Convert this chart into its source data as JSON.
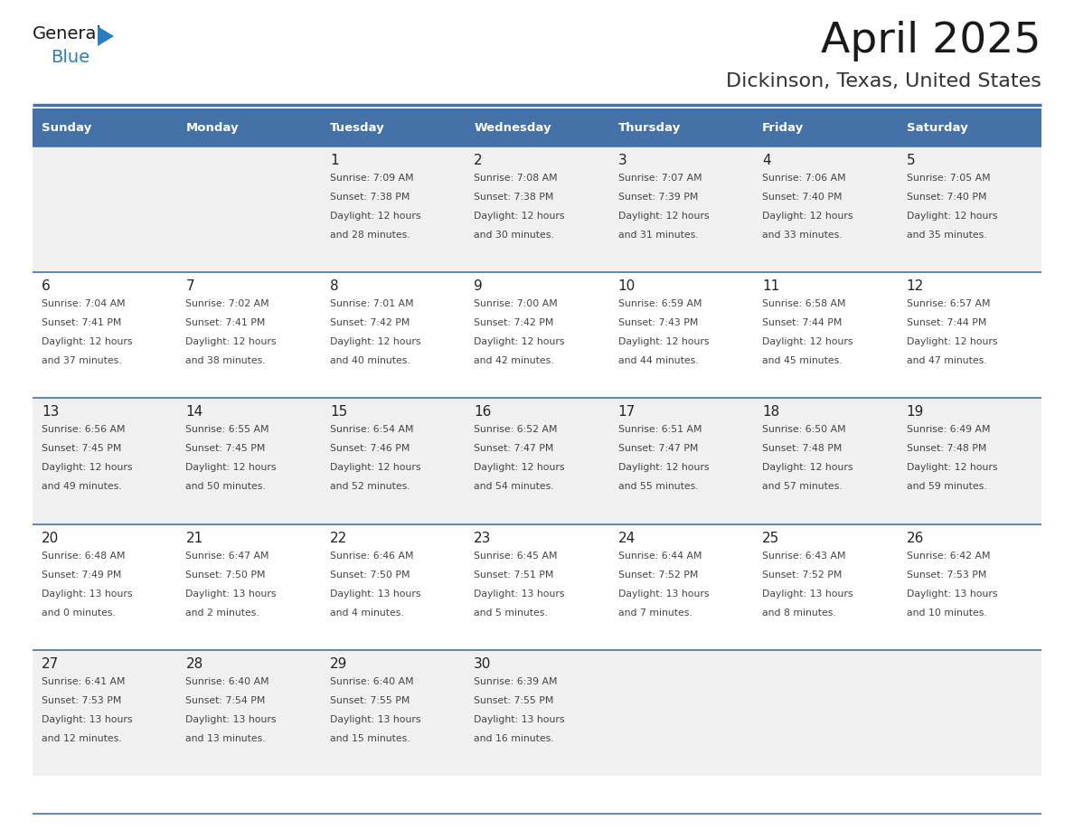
{
  "title": "April 2025",
  "subtitle": "Dickinson, Texas, United States",
  "header_bg": "#4472a8",
  "header_text_color": "#ffffff",
  "cell_bg_odd": "#f0f0f0",
  "cell_bg_even": "#ffffff",
  "day_names": [
    "Sunday",
    "Monday",
    "Tuesday",
    "Wednesday",
    "Thursday",
    "Friday",
    "Saturday"
  ],
  "grid_line_color": "#4472a8",
  "weeks": [
    [
      {
        "date": "",
        "sunrise": "",
        "sunset": "",
        "daylight": ""
      },
      {
        "date": "",
        "sunrise": "",
        "sunset": "",
        "daylight": ""
      },
      {
        "date": "1",
        "sunrise": "Sunrise: 7:09 AM",
        "sunset": "Sunset: 7:38 PM",
        "daylight": "Daylight: 12 hours\nand 28 minutes."
      },
      {
        "date": "2",
        "sunrise": "Sunrise: 7:08 AM",
        "sunset": "Sunset: 7:38 PM",
        "daylight": "Daylight: 12 hours\nand 30 minutes."
      },
      {
        "date": "3",
        "sunrise": "Sunrise: 7:07 AM",
        "sunset": "Sunset: 7:39 PM",
        "daylight": "Daylight: 12 hours\nand 31 minutes."
      },
      {
        "date": "4",
        "sunrise": "Sunrise: 7:06 AM",
        "sunset": "Sunset: 7:40 PM",
        "daylight": "Daylight: 12 hours\nand 33 minutes."
      },
      {
        "date": "5",
        "sunrise": "Sunrise: 7:05 AM",
        "sunset": "Sunset: 7:40 PM",
        "daylight": "Daylight: 12 hours\nand 35 minutes."
      }
    ],
    [
      {
        "date": "6",
        "sunrise": "Sunrise: 7:04 AM",
        "sunset": "Sunset: 7:41 PM",
        "daylight": "Daylight: 12 hours\nand 37 minutes."
      },
      {
        "date": "7",
        "sunrise": "Sunrise: 7:02 AM",
        "sunset": "Sunset: 7:41 PM",
        "daylight": "Daylight: 12 hours\nand 38 minutes."
      },
      {
        "date": "8",
        "sunrise": "Sunrise: 7:01 AM",
        "sunset": "Sunset: 7:42 PM",
        "daylight": "Daylight: 12 hours\nand 40 minutes."
      },
      {
        "date": "9",
        "sunrise": "Sunrise: 7:00 AM",
        "sunset": "Sunset: 7:42 PM",
        "daylight": "Daylight: 12 hours\nand 42 minutes."
      },
      {
        "date": "10",
        "sunrise": "Sunrise: 6:59 AM",
        "sunset": "Sunset: 7:43 PM",
        "daylight": "Daylight: 12 hours\nand 44 minutes."
      },
      {
        "date": "11",
        "sunrise": "Sunrise: 6:58 AM",
        "sunset": "Sunset: 7:44 PM",
        "daylight": "Daylight: 12 hours\nand 45 minutes."
      },
      {
        "date": "12",
        "sunrise": "Sunrise: 6:57 AM",
        "sunset": "Sunset: 7:44 PM",
        "daylight": "Daylight: 12 hours\nand 47 minutes."
      }
    ],
    [
      {
        "date": "13",
        "sunrise": "Sunrise: 6:56 AM",
        "sunset": "Sunset: 7:45 PM",
        "daylight": "Daylight: 12 hours\nand 49 minutes."
      },
      {
        "date": "14",
        "sunrise": "Sunrise: 6:55 AM",
        "sunset": "Sunset: 7:45 PM",
        "daylight": "Daylight: 12 hours\nand 50 minutes."
      },
      {
        "date": "15",
        "sunrise": "Sunrise: 6:54 AM",
        "sunset": "Sunset: 7:46 PM",
        "daylight": "Daylight: 12 hours\nand 52 minutes."
      },
      {
        "date": "16",
        "sunrise": "Sunrise: 6:52 AM",
        "sunset": "Sunset: 7:47 PM",
        "daylight": "Daylight: 12 hours\nand 54 minutes."
      },
      {
        "date": "17",
        "sunrise": "Sunrise: 6:51 AM",
        "sunset": "Sunset: 7:47 PM",
        "daylight": "Daylight: 12 hours\nand 55 minutes."
      },
      {
        "date": "18",
        "sunrise": "Sunrise: 6:50 AM",
        "sunset": "Sunset: 7:48 PM",
        "daylight": "Daylight: 12 hours\nand 57 minutes."
      },
      {
        "date": "19",
        "sunrise": "Sunrise: 6:49 AM",
        "sunset": "Sunset: 7:48 PM",
        "daylight": "Daylight: 12 hours\nand 59 minutes."
      }
    ],
    [
      {
        "date": "20",
        "sunrise": "Sunrise: 6:48 AM",
        "sunset": "Sunset: 7:49 PM",
        "daylight": "Daylight: 13 hours\nand 0 minutes."
      },
      {
        "date": "21",
        "sunrise": "Sunrise: 6:47 AM",
        "sunset": "Sunset: 7:50 PM",
        "daylight": "Daylight: 13 hours\nand 2 minutes."
      },
      {
        "date": "22",
        "sunrise": "Sunrise: 6:46 AM",
        "sunset": "Sunset: 7:50 PM",
        "daylight": "Daylight: 13 hours\nand 4 minutes."
      },
      {
        "date": "23",
        "sunrise": "Sunrise: 6:45 AM",
        "sunset": "Sunset: 7:51 PM",
        "daylight": "Daylight: 13 hours\nand 5 minutes."
      },
      {
        "date": "24",
        "sunrise": "Sunrise: 6:44 AM",
        "sunset": "Sunset: 7:52 PM",
        "daylight": "Daylight: 13 hours\nand 7 minutes."
      },
      {
        "date": "25",
        "sunrise": "Sunrise: 6:43 AM",
        "sunset": "Sunset: 7:52 PM",
        "daylight": "Daylight: 13 hours\nand 8 minutes."
      },
      {
        "date": "26",
        "sunrise": "Sunrise: 6:42 AM",
        "sunset": "Sunset: 7:53 PM",
        "daylight": "Daylight: 13 hours\nand 10 minutes."
      }
    ],
    [
      {
        "date": "27",
        "sunrise": "Sunrise: 6:41 AM",
        "sunset": "Sunset: 7:53 PM",
        "daylight": "Daylight: 13 hours\nand 12 minutes."
      },
      {
        "date": "28",
        "sunrise": "Sunrise: 6:40 AM",
        "sunset": "Sunset: 7:54 PM",
        "daylight": "Daylight: 13 hours\nand 13 minutes."
      },
      {
        "date": "29",
        "sunrise": "Sunrise: 6:40 AM",
        "sunset": "Sunset: 7:55 PM",
        "daylight": "Daylight: 13 hours\nand 15 minutes."
      },
      {
        "date": "30",
        "sunrise": "Sunrise: 6:39 AM",
        "sunset": "Sunset: 7:55 PM",
        "daylight": "Daylight: 13 hours\nand 16 minutes."
      },
      {
        "date": "",
        "sunrise": "",
        "sunset": "",
        "daylight": ""
      },
      {
        "date": "",
        "sunrise": "",
        "sunset": "",
        "daylight": ""
      },
      {
        "date": "",
        "sunrise": "",
        "sunset": "",
        "daylight": ""
      }
    ]
  ]
}
